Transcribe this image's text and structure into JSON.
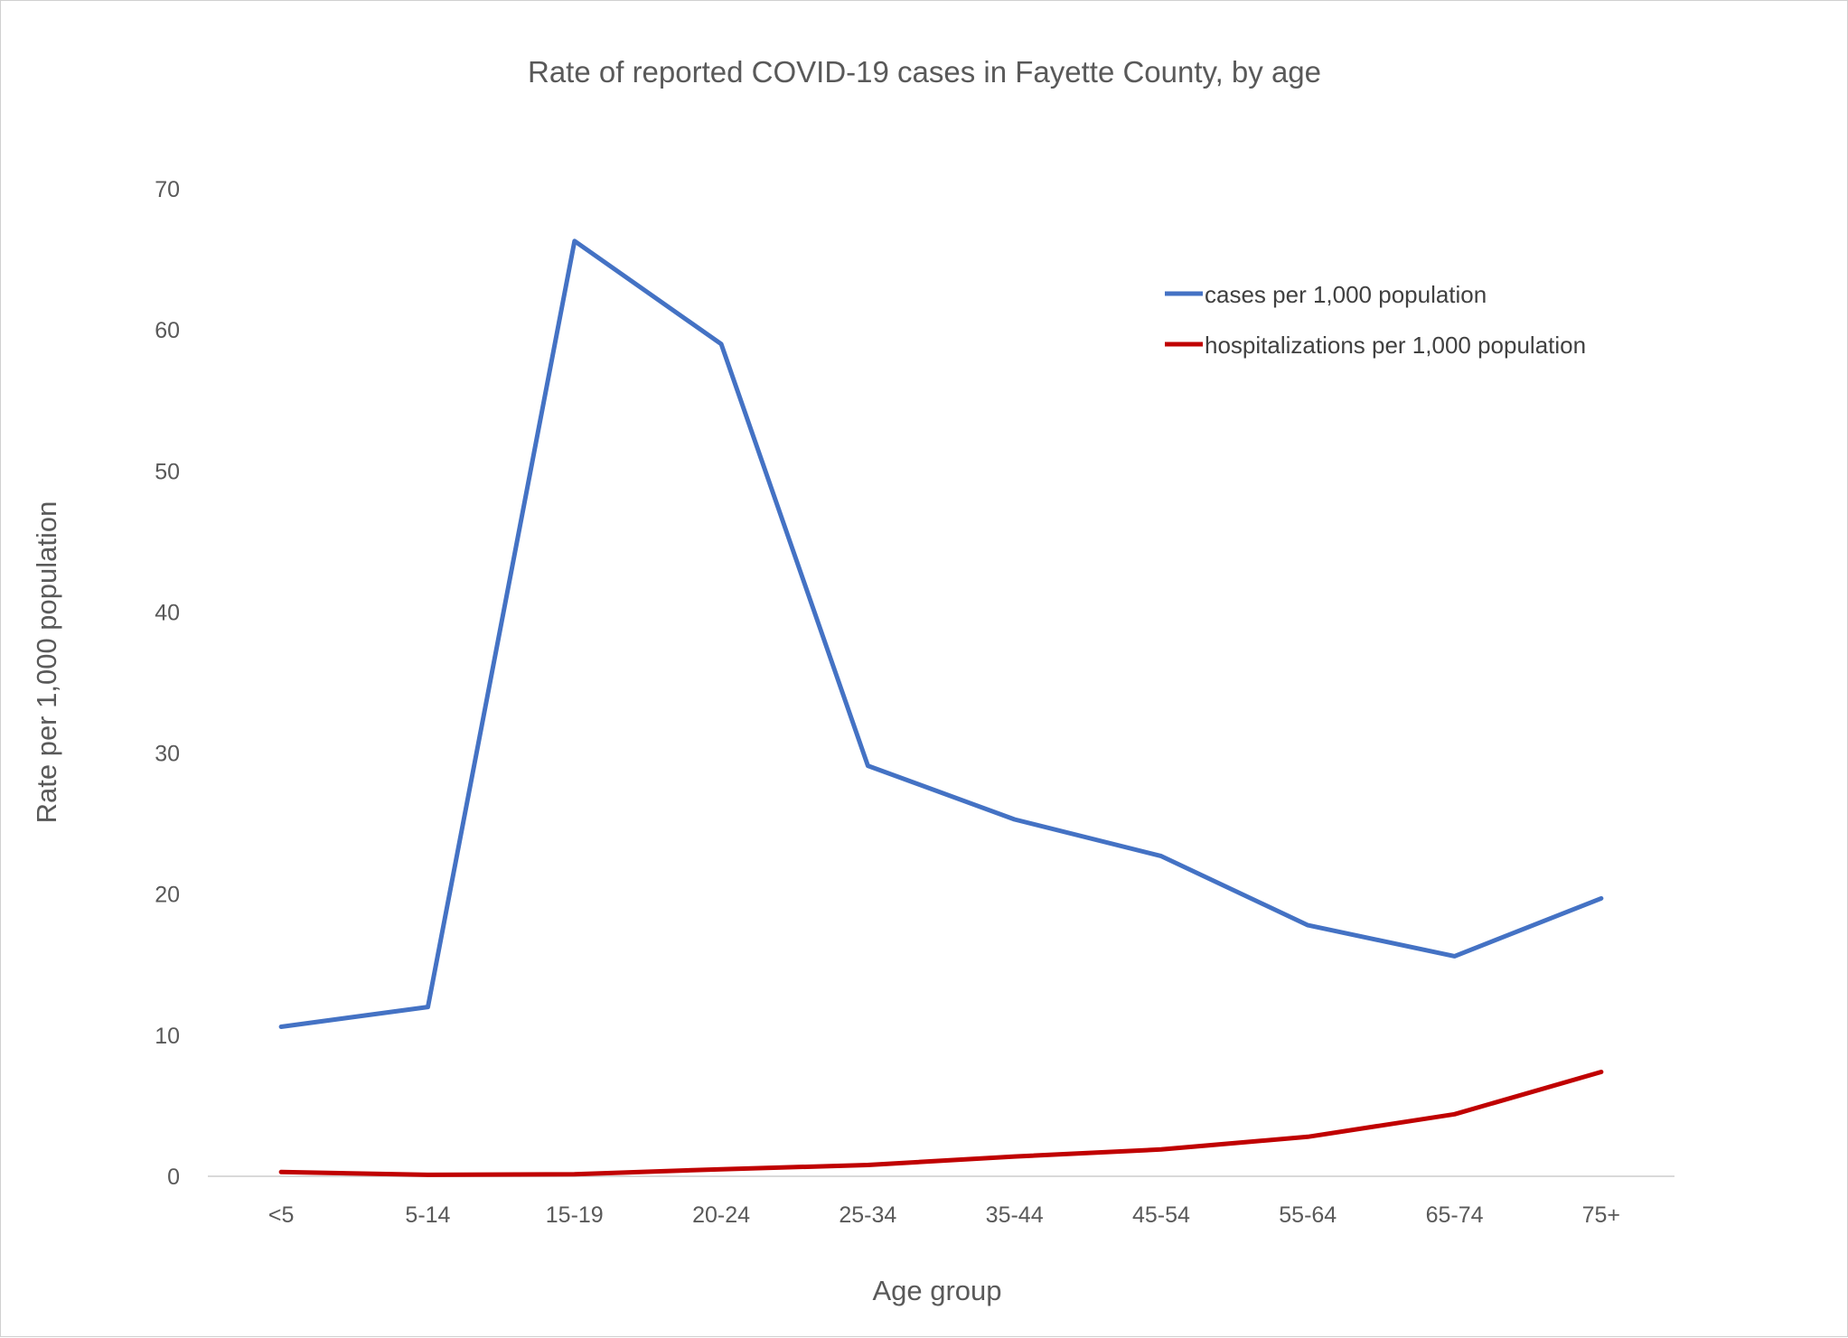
{
  "chart_data": {
    "type": "line",
    "title": "Rate of reported COVID-19 cases in Fayette County, by age",
    "xlabel": "Age group",
    "ylabel": "Rate per 1,000 population",
    "categories": [
      "<5",
      "5-14",
      "15-19",
      "20-24",
      "25-34",
      "35-44",
      "45-54",
      "55-64",
      "65-74",
      "75+"
    ],
    "y_ticks": [
      "0",
      "10",
      "20",
      "30",
      "40",
      "50",
      "60",
      "70"
    ],
    "ylim": [
      0,
      70
    ],
    "grid": false,
    "legend_position": "top-right",
    "series": [
      {
        "name": "cases per 1,000 population",
        "color": "#4472c4",
        "values": [
          10.6,
          12.0,
          66.3,
          59.0,
          29.1,
          25.3,
          22.7,
          17.8,
          15.6,
          19.7
        ]
      },
      {
        "name": "hospitalizations per 1,000 population",
        "color": "#c00000",
        "values": [
          0.3,
          0.1,
          0.15,
          0.5,
          0.8,
          1.4,
          1.9,
          2.8,
          4.4,
          7.4
        ]
      }
    ]
  }
}
